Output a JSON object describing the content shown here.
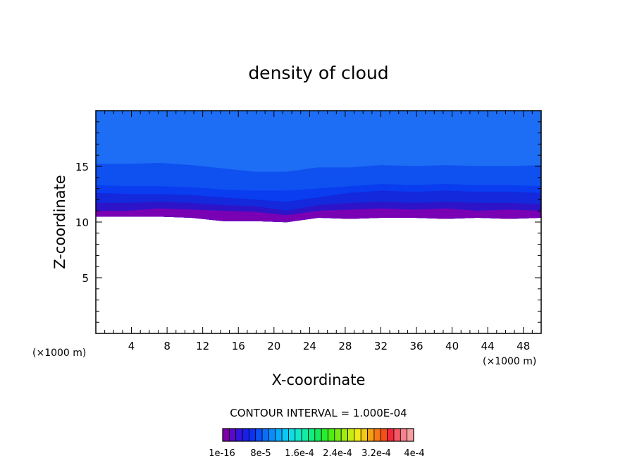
{
  "chart_data": {
    "type": "contour",
    "title": "density of cloud",
    "xlabel": "X-coordinate",
    "ylabel": "Z-coordinate",
    "x_unit": "(×1000 m)",
    "y_unit": "(×1000 m)",
    "xlim": [
      0,
      50
    ],
    "ylim": [
      0,
      20
    ],
    "x_ticks": [
      4,
      8,
      12,
      16,
      20,
      24,
      28,
      32,
      36,
      40,
      44,
      48
    ],
    "y_ticks": [
      5,
      10,
      15
    ],
    "contour_interval_text": "CONTOUR INTERVAL = 1.000E-04",
    "colorbar": {
      "colors": [
        "#7f00a8",
        "#5a0ac8",
        "#3614dc",
        "#1a1ee6",
        "#0a32f0",
        "#0a50f5",
        "#0a6ef8",
        "#0a8cfa",
        "#0aaafa",
        "#0ac8f5",
        "#10dce6",
        "#14e6c8",
        "#14eba5",
        "#14eb82",
        "#14eb5a",
        "#28eb32",
        "#50eb14",
        "#78eb14",
        "#a0eb14",
        "#c8eb14",
        "#f0eb14",
        "#f5c814",
        "#f5a014",
        "#f57814",
        "#f55014",
        "#f5283c",
        "#f55a64",
        "#f5828c",
        "#f5a0a0"
      ],
      "labels": [
        "1e-16",
        "8e-5",
        "1.6e-4",
        "2.4e-4",
        "3.2e-4",
        "4e-4"
      ]
    },
    "bands": [
      {
        "level_index": 5,
        "color": "#1e6ef5",
        "top_z": [
          20,
          20,
          20,
          20,
          20,
          20,
          20,
          20,
          20,
          20,
          20,
          20,
          20,
          20,
          20
        ]
      },
      {
        "level_index": 4,
        "color": "#0f50f0",
        "top_z": [
          15.2,
          15.2,
          15.3,
          15.1,
          14.8,
          14.5,
          14.5,
          14.9,
          14.9,
          15.1,
          15.0,
          15.1,
          15.0,
          15.0,
          15.1
        ]
      },
      {
        "level_index": 3,
        "color": "#0a3cf0",
        "top_z": [
          13.3,
          13.2,
          13.2,
          13.1,
          12.9,
          12.8,
          12.8,
          13.0,
          13.2,
          13.4,
          13.3,
          13.4,
          13.3,
          13.3,
          13.2
        ]
      },
      {
        "level_index": 2,
        "color": "#1428dc",
        "top_z": [
          12.6,
          12.5,
          12.5,
          12.4,
          12.2,
          12.0,
          11.8,
          12.2,
          12.6,
          12.8,
          12.7,
          12.8,
          12.7,
          12.7,
          12.6
        ]
      },
      {
        "level_index": 1,
        "color": "#2e14c8",
        "top_z": [
          11.7,
          11.7,
          11.8,
          11.7,
          11.5,
          11.4,
          11.0,
          11.5,
          11.7,
          11.8,
          11.7,
          11.8,
          11.7,
          11.7,
          11.6
        ]
      },
      {
        "level_index": 0,
        "color": "#7a00b4",
        "top_z": [
          11.0,
          11.0,
          11.2,
          11.1,
          11.0,
          10.9,
          10.6,
          11.0,
          11.1,
          11.2,
          11.1,
          11.2,
          11.0,
          11.1,
          11.0
        ]
      }
    ],
    "cloud_base_z": [
      10.5,
      10.5,
      10.5,
      10.4,
      10.1,
      10.1,
      10.0,
      10.4,
      10.3,
      10.4,
      10.4,
      10.3,
      10.4,
      10.3,
      10.4
    ]
  }
}
